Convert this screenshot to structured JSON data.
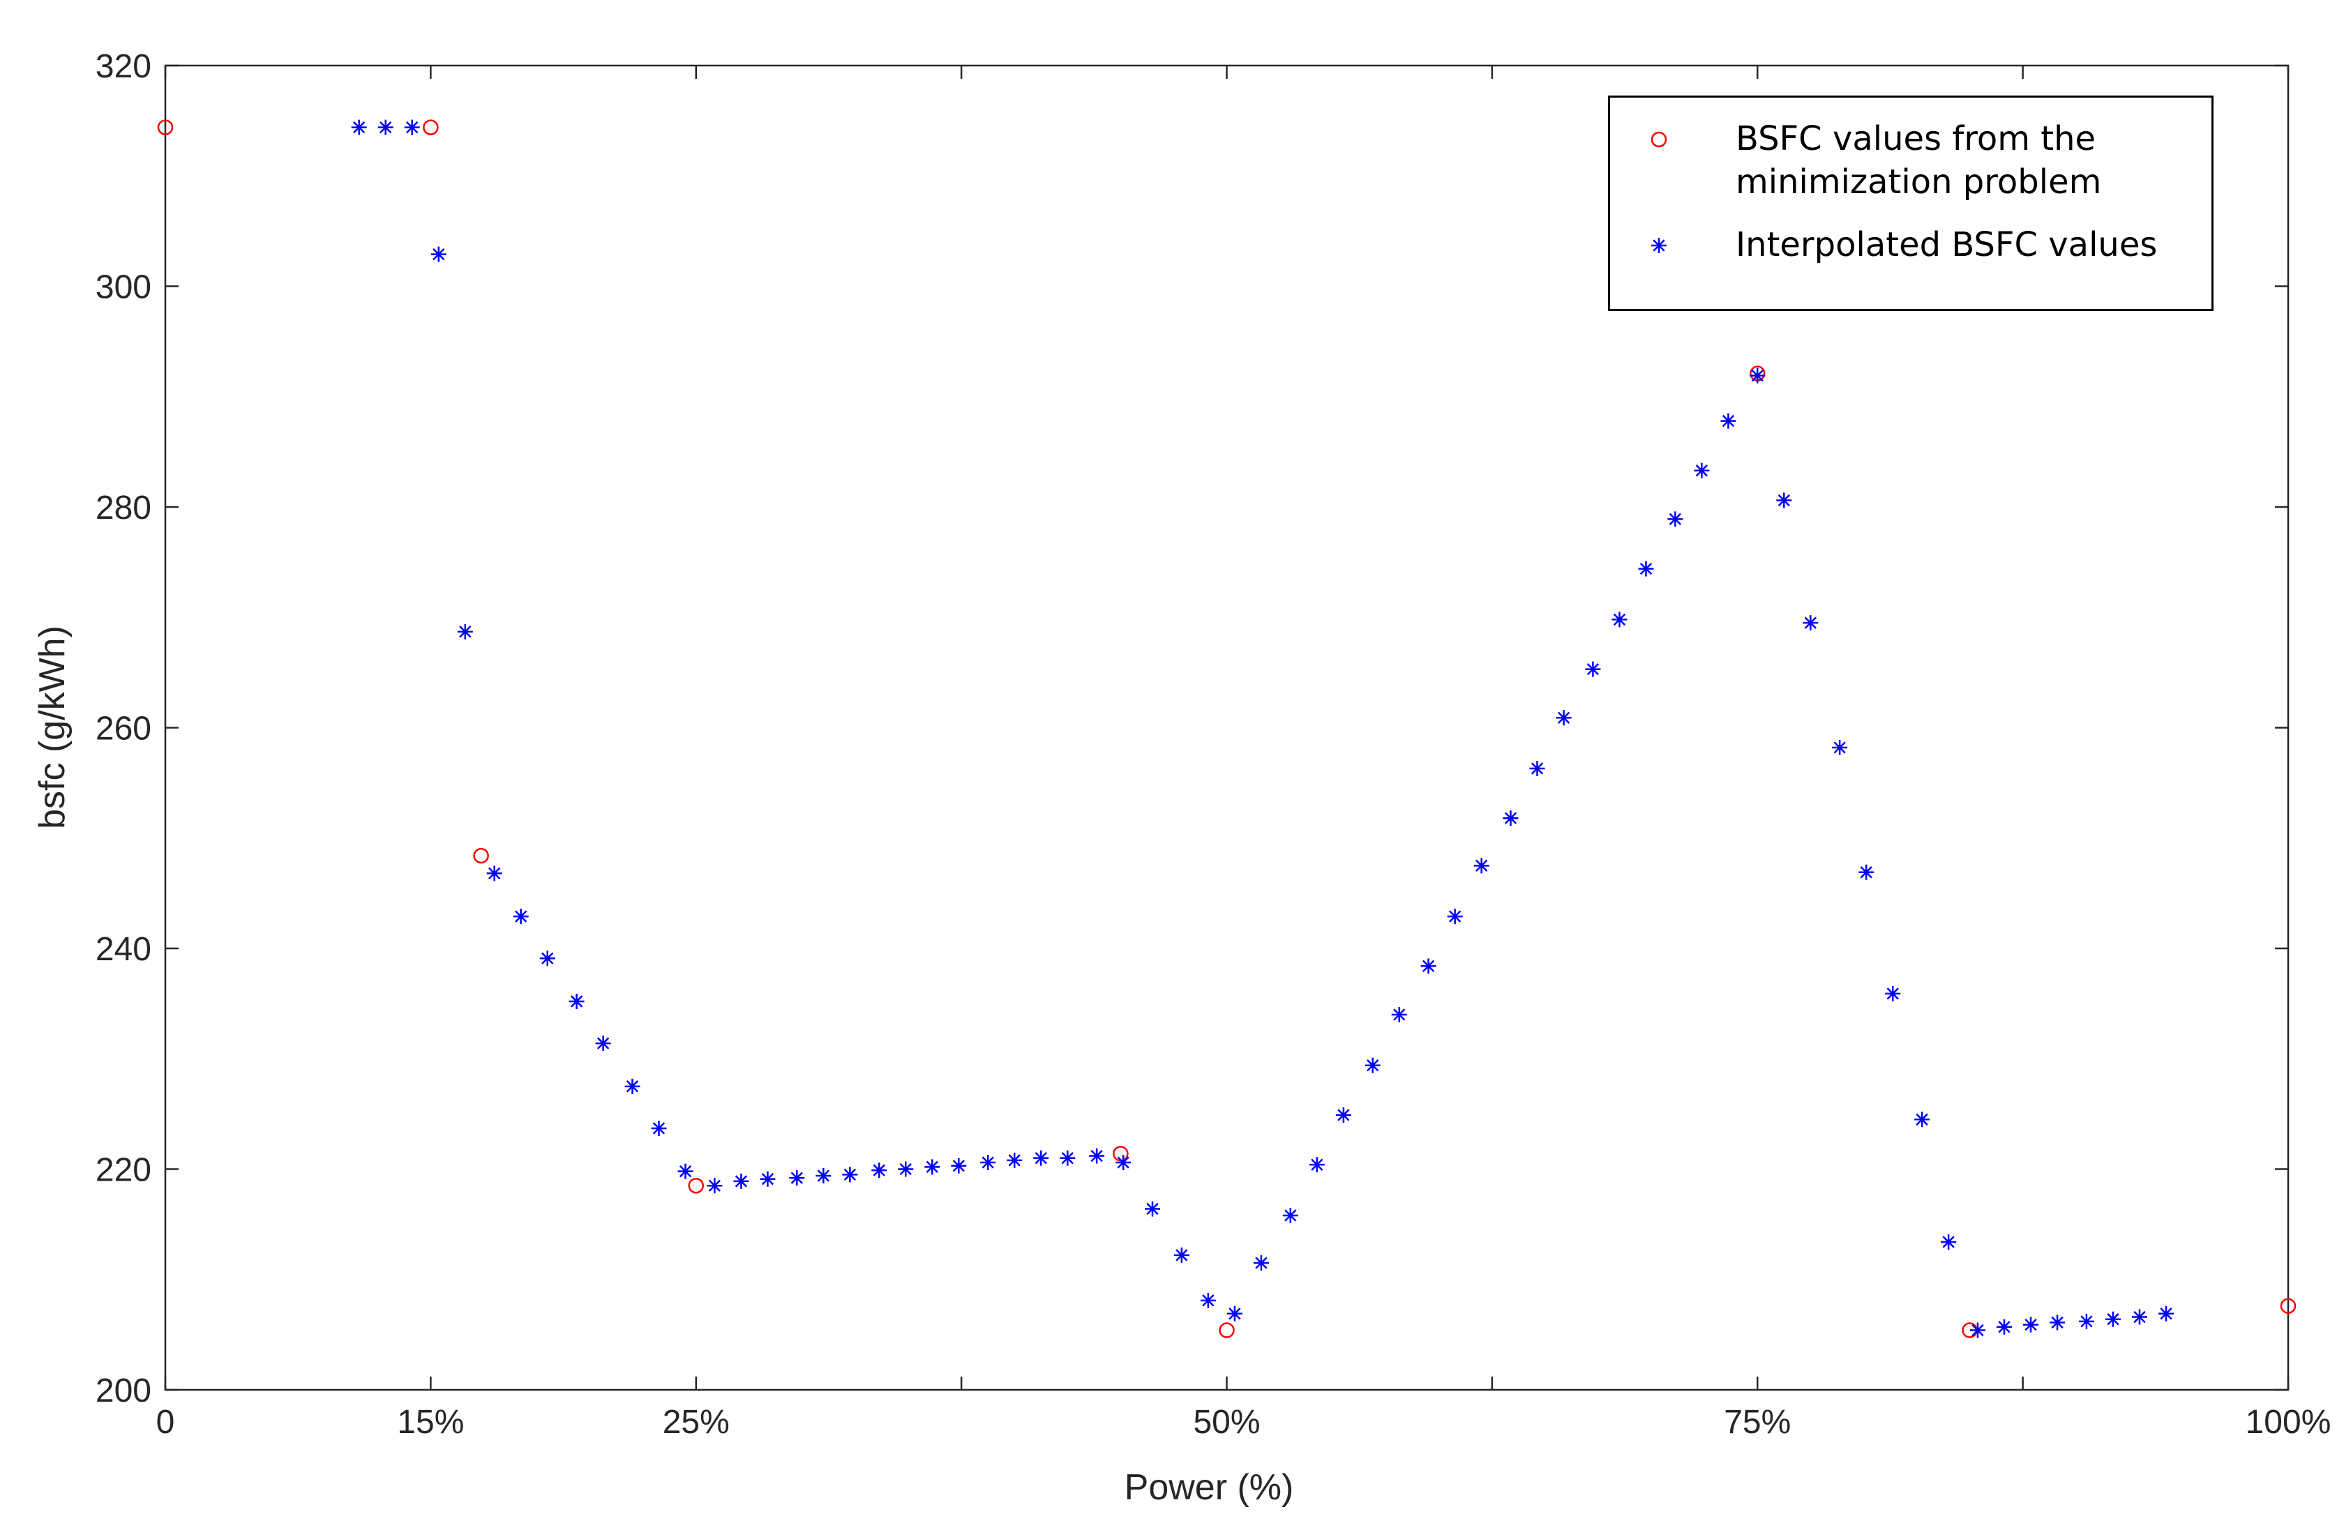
{
  "chart_data": {
    "type": "scatter",
    "xlabel": "Power (%)",
    "ylabel": "bsfc (g/kWh)",
    "xlim": [
      0,
      8
    ],
    "ylim": [
      200,
      320
    ],
    "xticks": [
      0,
      {
        "value": 1,
        "label": "15%"
      },
      {
        "value": 2,
        "label": "25%"
      },
      {
        "value": 3,
        "label": null
      },
      {
        "value": 4,
        "label": "50%"
      },
      {
        "value": 5,
        "label": null
      },
      {
        "value": 6,
        "label": "75%"
      },
      {
        "value": 7,
        "label": null
      },
      {
        "value": 8,
        "label": "100%"
      }
    ],
    "yticks": [
      200,
      220,
      240,
      260,
      280,
      300,
      320
    ],
    "grid": false,
    "legend": "upper right",
    "series": [
      {
        "name": "BSFC values from the minimization problem",
        "color": "#ff0000",
        "marker": "circle",
        "x": [
          0,
          1,
          1.19,
          2,
          3.6,
          4,
          6,
          6.8,
          8
        ],
        "values": [
          314.4,
          314.4,
          248.4,
          218.5,
          221.4,
          205.4,
          292.1,
          205.4,
          207.6
        ]
      },
      {
        "name": "Interpolated BSFC values",
        "color": "#0000ff",
        "marker": "asterisk",
        "x": [
          0.73,
          0.83,
          0.93,
          1.03,
          1.13,
          1.24,
          1.34,
          1.44,
          1.55,
          1.65,
          1.76,
          1.86,
          1.96,
          2.07,
          2.17,
          2.27,
          2.38,
          2.48,
          2.58,
          2.69,
          2.79,
          2.89,
          2.99,
          3.1,
          3.2,
          3.3,
          3.4,
          3.51,
          3.61,
          3.72,
          3.83,
          3.93,
          4.03,
          4.13,
          4.24,
          4.34,
          4.44,
          4.55,
          4.65,
          4.76,
          4.86,
          4.96,
          5.07,
          5.17,
          5.27,
          5.38,
          5.48,
          5.58,
          5.69,
          5.79,
          5.89,
          6,
          6.1,
          6.2,
          6.31,
          6.41,
          6.51,
          6.62,
          6.72,
          6.83,
          6.93,
          7.03,
          7.13,
          7.24,
          7.34,
          7.44,
          7.54
        ],
        "values": [
          314.4,
          314.4,
          314.4,
          302.9,
          268.7,
          246.8,
          242.9,
          239.1,
          235.2,
          231.4,
          227.5,
          223.7,
          219.8,
          218.5,
          218.9,
          219.1,
          219.2,
          219.4,
          219.5,
          219.9,
          220.0,
          220.2,
          220.3,
          220.6,
          220.8,
          221.0,
          221.0,
          221.2,
          220.6,
          216.4,
          212.2,
          208.1,
          206.9,
          211.5,
          215.8,
          220.4,
          224.9,
          229.4,
          234.0,
          238.4,
          242.9,
          247.5,
          251.8,
          256.3,
          260.9,
          265.3,
          269.8,
          274.4,
          278.9,
          283.3,
          287.8,
          291.9,
          280.6,
          269.5,
          258.2,
          246.9,
          235.9,
          224.5,
          213.4,
          205.4,
          205.7,
          205.9,
          206.1,
          206.2,
          206.4,
          206.6,
          206.9
        ]
      }
    ]
  }
}
